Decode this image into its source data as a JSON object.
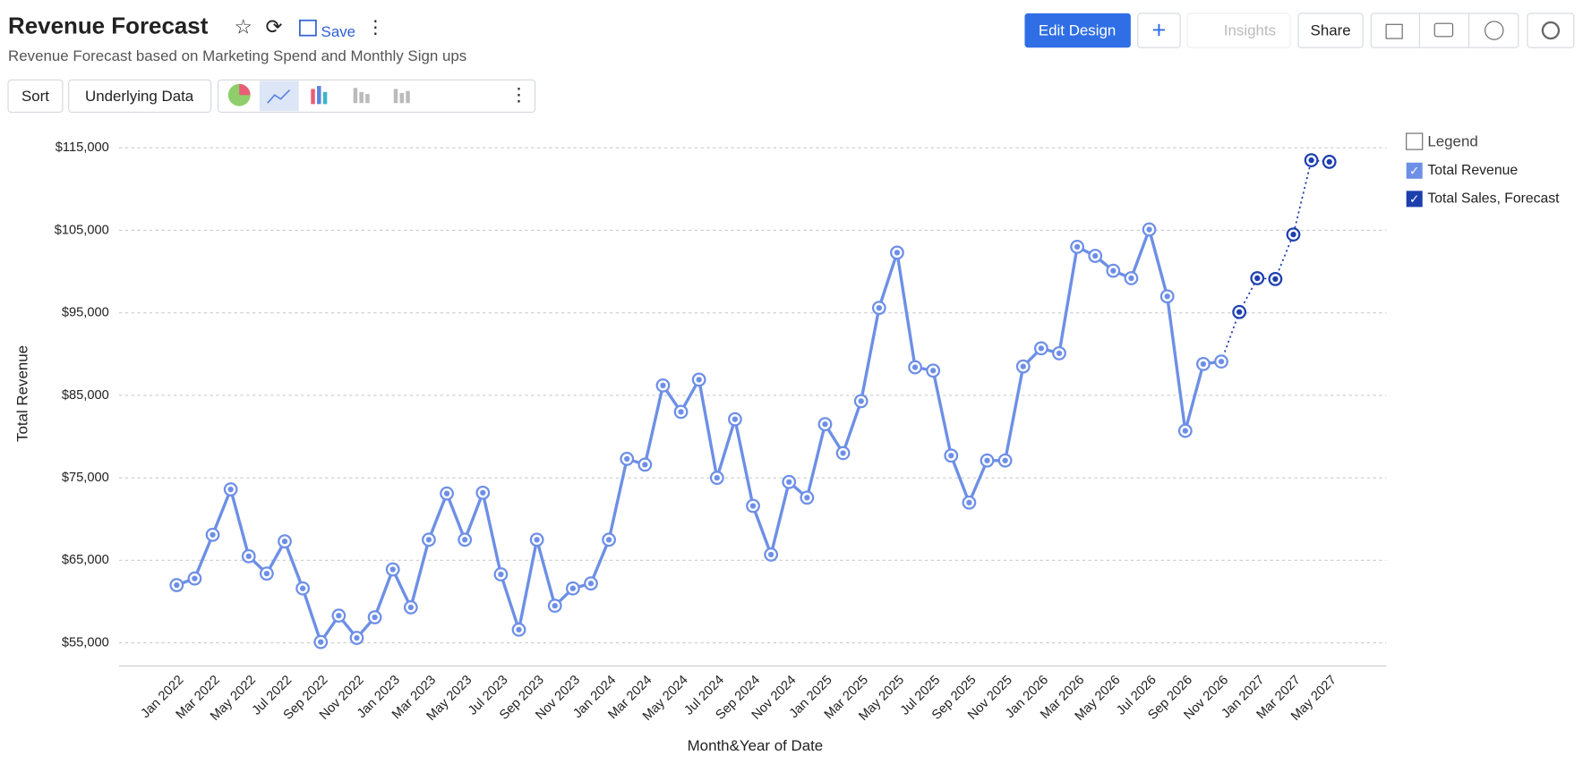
{
  "header": {
    "title": "Revenue Forecast",
    "save": "Save",
    "subtitle": "Revenue Forecast based on Marketing Spend and Monthly Sign ups"
  },
  "toolbar": {
    "sort": "Sort",
    "underlying": "Underlying Data",
    "edit": "Edit Design",
    "insights": "Insights",
    "share": "Share"
  },
  "chart_data": {
    "type": "line",
    "x_label": "Month&Year of Date",
    "y_label": "Total Revenue",
    "legend_title": "Legend",
    "legend": "right-top",
    "grid": true,
    "categories": [
      "Jan 2022",
      null,
      "Mar 2022",
      null,
      "May 2022",
      null,
      "Jul 2022",
      null,
      "Sep 2022",
      null,
      "Nov 2022",
      null,
      "Jan 2023",
      null,
      "Mar 2023",
      null,
      "May 2023",
      null,
      "Jul 2023",
      null,
      "Sep 2023",
      null,
      "Nov 2023",
      null,
      "Jan 2024",
      null,
      "Mar 2024",
      null,
      "May 2024",
      null,
      "Jul 2024",
      null,
      "Sep 2024",
      null,
      "Nov 2024",
      null,
      "Jan 2025",
      null,
      "Mar 2025",
      null,
      "May 2025",
      null,
      "Jul 2025",
      null,
      "Sep 2025",
      null,
      "Nov 2025",
      null,
      "Jan 2026",
      null,
      "Mar 2026",
      null,
      "May 2026",
      null,
      "Jul 2026",
      null,
      "Sep 2026",
      null,
      "Nov 2026",
      null,
      "Jan 2027",
      null,
      "Mar 2027",
      null,
      "May 2027"
    ],
    "series": [
      {
        "name": "Total Revenue",
        "color": "#6d8fe6",
        "values": [
          62000,
          62800,
          68100,
          73600,
          65500,
          63400,
          67300,
          61600,
          55100,
          58300,
          55600,
          58100,
          63900,
          59300,
          67500,
          73100,
          67500,
          73200,
          63300,
          56600,
          67500,
          59500,
          61600,
          62200,
          67500,
          77300,
          76600,
          86200,
          83000,
          86900,
          75000,
          82100,
          71600,
          65700,
          74500,
          72600,
          81500,
          78000,
          84300,
          95600,
          102300,
          88400,
          88000,
          77700,
          72000,
          77100,
          77100,
          88500,
          90700,
          90100,
          103000,
          101900,
          100100,
          99200,
          105100,
          97000,
          80700,
          88800,
          89100,
          null,
          null,
          null,
          null,
          null,
          null
        ]
      },
      {
        "name": "Total Sales, Forecast",
        "color": "#1d3fae",
        "values": [
          null,
          null,
          null,
          null,
          null,
          null,
          null,
          null,
          null,
          null,
          null,
          null,
          null,
          null,
          null,
          null,
          null,
          null,
          null,
          null,
          null,
          null,
          null,
          null,
          null,
          null,
          null,
          null,
          null,
          null,
          null,
          null,
          null,
          null,
          null,
          null,
          null,
          null,
          null,
          null,
          null,
          null,
          null,
          null,
          null,
          null,
          null,
          null,
          null,
          null,
          null,
          null,
          null,
          null,
          null,
          null,
          null,
          null,
          null,
          95100,
          99200,
          99100,
          104500,
          113500,
          113300
        ]
      }
    ],
    "ylim": [
      52200,
      117000
    ],
    "yticks": [
      {
        "value": 55000,
        "label": "$55,000"
      },
      {
        "value": 65000,
        "label": "$65,000"
      },
      {
        "value": 75000,
        "label": "$75,000"
      },
      {
        "value": 85000,
        "label": "$85,000"
      },
      {
        "value": 95000,
        "label": "$95,000"
      },
      {
        "value": 105000,
        "label": "$105,000"
      },
      {
        "value": 115000,
        "label": "$115,000"
      }
    ]
  }
}
